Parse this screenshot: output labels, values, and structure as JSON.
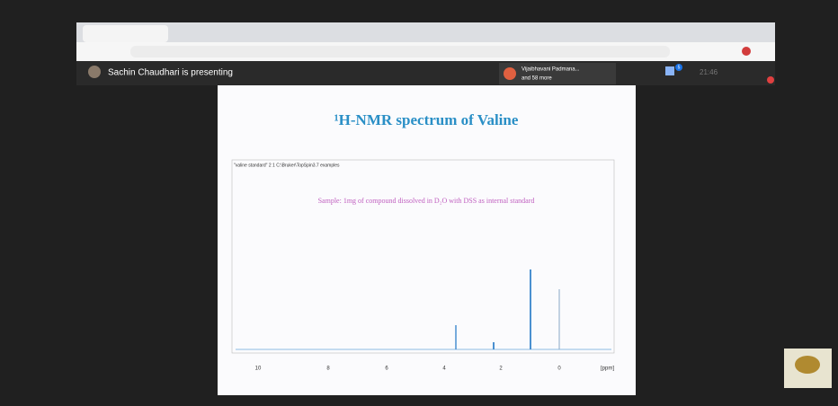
{
  "meet": {
    "presenter_banner": "Sachin Chaudhari is presenting",
    "participant_name": "Vijaibhavani Padmana...",
    "participant_more": "and 58 more",
    "chat_badge": "5",
    "clock": "21:46"
  },
  "slide": {
    "title": "¹H-NMR spectrum of Valine",
    "plot_header": "\"valine standard\" 2 1 C:\\Bruker\\TopSpin3.7 examples",
    "sample_note": "Sample: 1mg of compound dissolved in D₂O with DSS as internal standard",
    "x_ticks": [
      "10",
      "8",
      "6",
      "4",
      "2",
      "0"
    ],
    "x_unit": "[ppm]"
  }
}
